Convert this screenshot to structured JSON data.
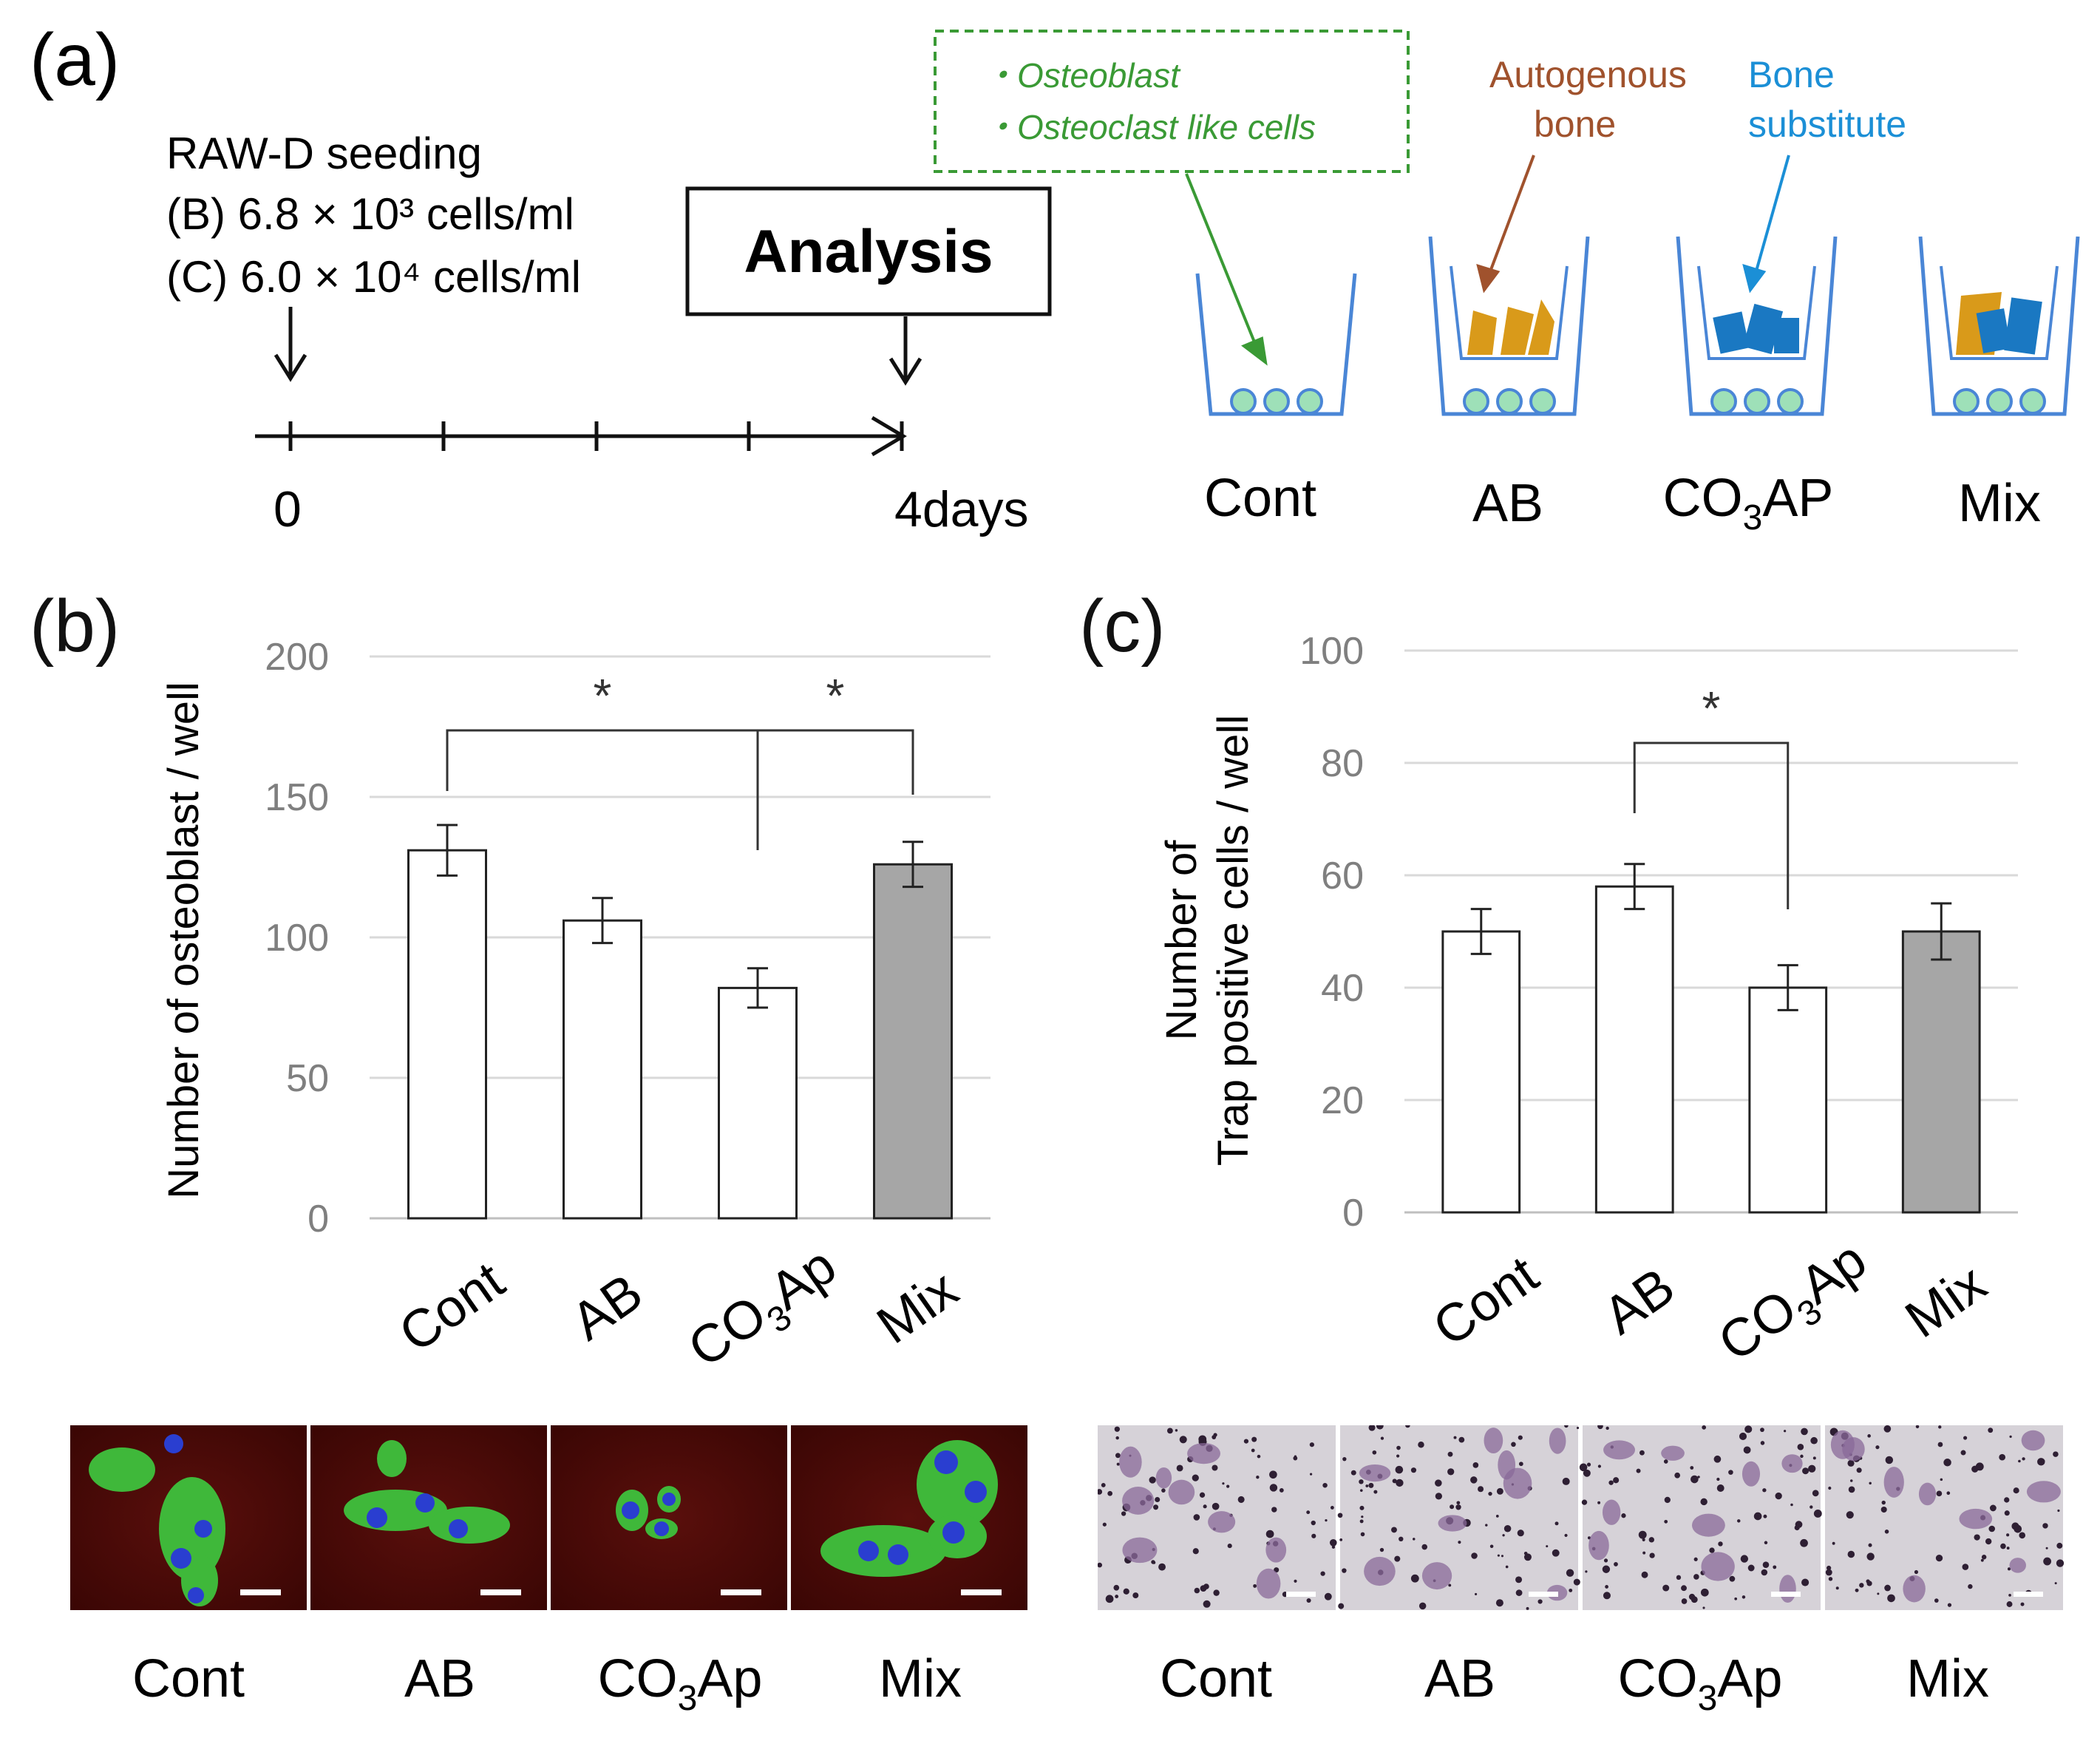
{
  "panel_a": {
    "letter": "(a)",
    "seeding_title": "RAW-D seeding",
    "seeding_b": "(B) 6.8 × 10³ cells/ml",
    "seeding_c": "(C) 6.0 × 10⁴ cells/ml",
    "analysis_label": "Analysis",
    "timeline_start": "0",
    "timeline_end": "4days",
    "legend_osteoblast": "・Osteoblast",
    "legend_osteoclast": "・Osteoclast like cells",
    "autogenous_line1": "Autogenous",
    "autogenous_line2": "bone",
    "substitute_line1": "Bone",
    "substitute_line2": "substitute",
    "well_labels": {
      "cont": "Cont",
      "ab": "AB",
      "co3ap_main": "CO",
      "co3ap_sub": "3",
      "co3ap_tail": "AP",
      "mix": "Mix"
    },
    "colors": {
      "green": "#3a9a35",
      "brown": "#a0522d",
      "blue": "#1b8fd6",
      "well": "#4a86d6",
      "bead": "#9ee0b8",
      "ab_fill": "#d99a1a",
      "sub_fill": "#1a78c2"
    }
  },
  "chart_data": [
    {
      "type": "bar",
      "panel": "(b)",
      "categories": [
        "Cont",
        "AB",
        "CO3Ap",
        "Mix"
      ],
      "category_labels": [
        {
          "main": "Cont",
          "sub": "",
          "tail": ""
        },
        {
          "main": "AB",
          "sub": "",
          "tail": ""
        },
        {
          "main": "CO",
          "sub": "3",
          "tail": "Ap"
        },
        {
          "main": "Mix",
          "sub": "",
          "tail": ""
        }
      ],
      "values": [
        131,
        106,
        82,
        126
      ],
      "errors": [
        9,
        8,
        7,
        8
      ],
      "colors": [
        "#ffffff",
        "#ffffff",
        "#ffffff",
        "#a6a6a6"
      ],
      "ylim": [
        0,
        200
      ],
      "yticks": [
        0,
        50,
        100,
        150,
        200
      ],
      "ylabel": "Number of osteoblast / well",
      "significance": [
        {
          "from": 0,
          "to": 2,
          "label": "*"
        },
        {
          "from": 2,
          "to": 3,
          "label": "*"
        }
      ]
    },
    {
      "type": "bar",
      "panel": "(c)",
      "categories": [
        "Cont",
        "AB",
        "CO3Ap",
        "Mix"
      ],
      "category_labels": [
        {
          "main": "Cont",
          "sub": "",
          "tail": ""
        },
        {
          "main": "AB",
          "sub": "",
          "tail": ""
        },
        {
          "main": "CO",
          "sub": "3",
          "tail": "Ap"
        },
        {
          "main": "Mix",
          "sub": "",
          "tail": ""
        }
      ],
      "values": [
        50,
        58,
        40,
        50
      ],
      "errors": [
        4,
        4,
        4,
        5
      ],
      "colors": [
        "#ffffff",
        "#ffffff",
        "#ffffff",
        "#a6a6a6"
      ],
      "ylim": [
        0,
        100
      ],
      "yticks": [
        0,
        20,
        40,
        60,
        80,
        100
      ],
      "ylabel_line1": "Number of",
      "ylabel_line2": "Trap positive cells / well",
      "significance": [
        {
          "from": 1,
          "to": 2,
          "label": "*"
        }
      ]
    }
  ],
  "micrographs_b": {
    "labels": [
      {
        "main": "Cont",
        "sub": "",
        "tail": ""
      },
      {
        "main": "AB",
        "sub": "",
        "tail": ""
      },
      {
        "main": "CO",
        "sub": "3",
        "tail": "Ap"
      },
      {
        "main": "Mix",
        "sub": "",
        "tail": ""
      }
    ]
  },
  "micrographs_c": {
    "labels": [
      {
        "main": "Cont",
        "sub": "",
        "tail": ""
      },
      {
        "main": "AB",
        "sub": "",
        "tail": ""
      },
      {
        "main": "CO",
        "sub": "3",
        "tail": "Ap"
      },
      {
        "main": "Mix",
        "sub": "",
        "tail": ""
      }
    ]
  },
  "panel_b_letter": "(b)",
  "panel_c_letter": "(c)"
}
